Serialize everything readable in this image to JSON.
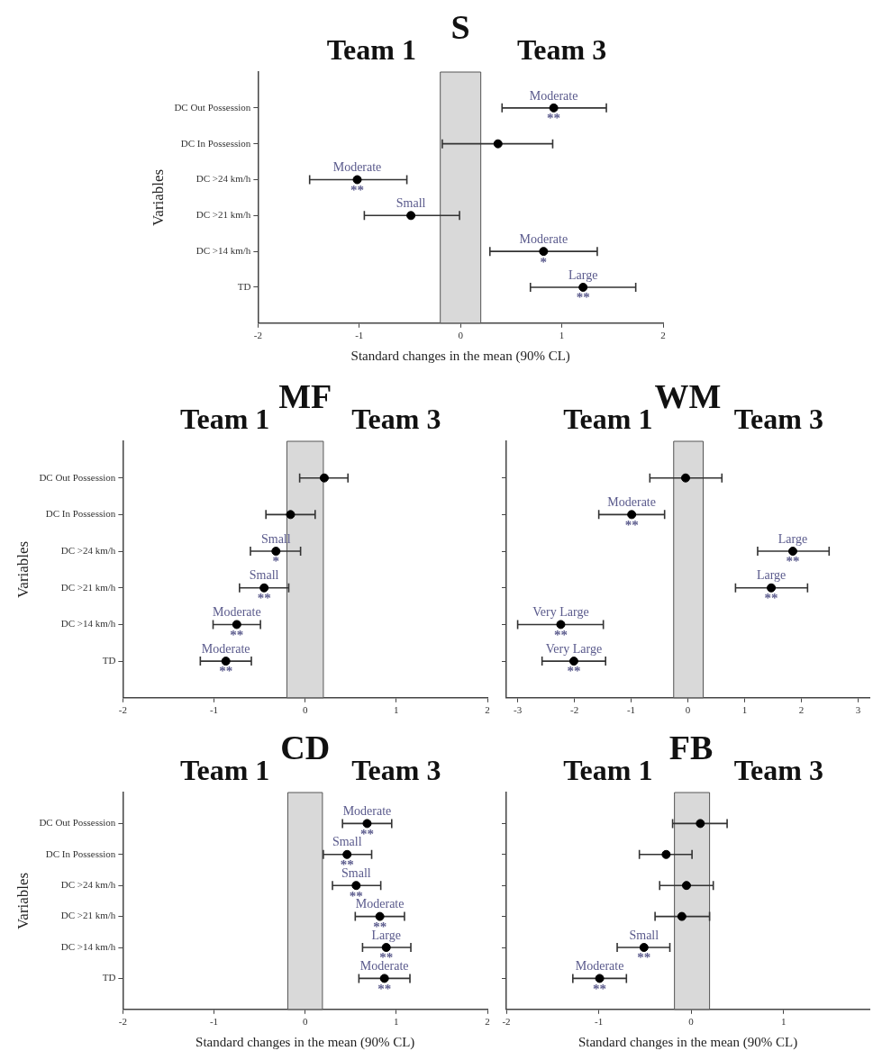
{
  "chart_data": [
    {
      "type": "scatter",
      "title": "S",
      "xlabel": "Standard changes in the mean (90% CL)",
      "ylabel": "Variables",
      "orientation": "horizontal",
      "marker": "circle",
      "color": "#000000",
      "categories": [
        "DC Out Possession",
        "DC In Possession",
        "DC >24 km/h",
        "DC >21 km/h",
        "DC >14 km/h",
        "TD"
      ],
      "values": [
        0.92,
        0.37,
        -1.02,
        -0.49,
        0.82,
        1.21
      ],
      "errors": [
        [
          0.41,
          1.44
        ],
        [
          -0.18,
          0.91
        ],
        [
          -1.49,
          -0.53
        ],
        [
          -0.95,
          -0.01
        ],
        [
          0.29,
          1.35
        ],
        [
          0.69,
          1.73
        ]
      ],
      "value_labels": [
        "Moderate",
        null,
        "Moderate",
        "Small",
        "Moderate",
        "Large"
      ],
      "xlim": [
        -2,
        2
      ],
      "xticks": [
        -2,
        -1,
        0,
        1,
        2
      ],
      "bands": [
        {
          "axis": "x",
          "from": -0.2,
          "to": 0.2,
          "color": "#d9d9d9"
        }
      ],
      "annotations": [
        "Team 1",
        "Team 3",
        {
          "text": "**",
          "x": 0.92,
          "y": "DC Out Possession"
        },
        {
          "text": "**",
          "x": -1.02,
          "y": "DC >24 km/h"
        },
        {
          "text": "*",
          "x": 0.82,
          "y": "DC >14 km/h"
        },
        {
          "text": "**",
          "x": 1.21,
          "y": "TD"
        }
      ]
    },
    {
      "type": "scatter",
      "title": "MF",
      "ylabel": "Variables",
      "orientation": "horizontal",
      "marker": "circle",
      "color": "#000000",
      "categories": [
        "DC Out Possession",
        "DC In Possession",
        "DC >24 km/h",
        "DC >21 km/h",
        "DC >14 km/h",
        "TD"
      ],
      "values": [
        0.21,
        -0.16,
        -0.32,
        -0.45,
        -0.75,
        -0.87
      ],
      "errors": [
        [
          -0.06,
          0.47
        ],
        [
          -0.43,
          0.11
        ],
        [
          -0.6,
          -0.05
        ],
        [
          -0.72,
          -0.18
        ],
        [
          -1.01,
          -0.49
        ],
        [
          -1.15,
          -0.59
        ]
      ],
      "value_labels": [
        null,
        null,
        "Small",
        "Small",
        "Moderate",
        "Moderate"
      ],
      "xlim": [
        -2,
        2
      ],
      "xticks": [
        -2,
        -1,
        0,
        1,
        2
      ],
      "bands": [
        {
          "axis": "x",
          "from": -0.2,
          "to": 0.2,
          "color": "#d9d9d9"
        }
      ],
      "annotations": [
        "Team 1",
        "Team 3",
        {
          "text": "*",
          "x": -0.32,
          "y": "DC >24 km/h"
        },
        {
          "text": "**",
          "x": -0.45,
          "y": "DC >21 km/h"
        },
        {
          "text": "**",
          "x": -0.75,
          "y": "DC >14 km/h"
        },
        {
          "text": "**",
          "x": -0.87,
          "y": "TD"
        }
      ]
    },
    {
      "type": "scatter",
      "title": "WM",
      "orientation": "horizontal",
      "marker": "circle",
      "color": "#000000",
      "tick_labels": "x",
      "categories": [
        "DC Out Possession",
        "DC In Possession",
        "DC >24 km/h",
        "DC >21 km/h",
        "DC >14 km/h",
        "TD"
      ],
      "values": [
        -0.04,
        -0.99,
        1.85,
        1.47,
        -2.24,
        -2.01
      ],
      "errors": [
        [
          -0.67,
          0.6
        ],
        [
          -1.57,
          -0.41
        ],
        [
          1.23,
          2.49
        ],
        [
          0.84,
          2.11
        ],
        [
          -3,
          -1.49
        ],
        [
          -2.57,
          -1.45
        ]
      ],
      "value_labels": [
        null,
        "Moderate",
        "Large",
        "Large",
        "Very Large",
        "Very Large"
      ],
      "xlim": [
        -3.2,
        3.2
      ],
      "xticks": [
        -3,
        -2,
        -1,
        0,
        1,
        2,
        3
      ],
      "bands": [
        {
          "axis": "x",
          "from": -0.25,
          "to": 0.27,
          "color": "#d9d9d9"
        }
      ],
      "annotations": [
        "Team 1",
        "Team 3",
        {
          "text": "**",
          "x": -0.99,
          "y": "DC In Possession"
        },
        {
          "text": "**",
          "x": 1.85,
          "y": "DC >24 km/h"
        },
        {
          "text": "**",
          "x": 1.47,
          "y": "DC >21 km/h"
        },
        {
          "text": "**",
          "x": -2.24,
          "y": "DC >14 km/h"
        },
        {
          "text": "**",
          "x": -2.01,
          "y": "TD"
        }
      ]
    },
    {
      "type": "scatter",
      "title": "CD",
      "xlabel": "Standard changes in the mean (90% CL)",
      "ylabel": "Variables",
      "orientation": "horizontal",
      "marker": "circle",
      "color": "#000000",
      "categories": [
        "DC Out Possession",
        "DC In Possession",
        "DC >24 km/h",
        "DC >21 km/h",
        "DC >14 km/h",
        "TD"
      ],
      "values": [
        0.68,
        0.46,
        0.56,
        0.82,
        0.89,
        0.87
      ],
      "errors": [
        [
          0.41,
          0.95
        ],
        [
          0.2,
          0.73
        ],
        [
          0.3,
          0.83
        ],
        [
          0.55,
          1.09
        ],
        [
          0.63,
          1.16
        ],
        [
          0.59,
          1.15
        ]
      ],
      "value_labels": [
        "Moderate",
        "Small",
        "Small",
        "Moderate",
        "Large",
        "Moderate"
      ],
      "xlim": [
        -2,
        2
      ],
      "xticks": [
        -2,
        -1,
        0,
        1,
        2
      ],
      "bands": [
        {
          "axis": "x",
          "from": -0.19,
          "to": 0.19,
          "color": "#d9d9d9"
        }
      ],
      "annotations": [
        "Team 1",
        "Team 3",
        {
          "text": "**",
          "x": 0.68,
          "y": "DC Out Possession"
        },
        {
          "text": "**",
          "x": 0.46,
          "y": "DC In Possession"
        },
        {
          "text": "**",
          "x": 0.56,
          "y": "DC >24 km/h"
        },
        {
          "text": "**",
          "x": 0.82,
          "y": "DC >21 km/h"
        },
        {
          "text": "**",
          "x": 0.89,
          "y": "DC >14 km/h"
        },
        {
          "text": "**",
          "x": 0.87,
          "y": "TD"
        }
      ]
    },
    {
      "type": "scatter",
      "title": "FB",
      "xlabel": "Standard changes in the mean (90% CL)",
      "orientation": "horizontal",
      "marker": "circle",
      "color": "#000000",
      "tick_labels": "x",
      "categories": [
        "DC Out Possession",
        "DC In Possession",
        "DC >24 km/h",
        "DC >21 km/h",
        "DC >14 km/h",
        "TD"
      ],
      "values": [
        0.1,
        -0.27,
        -0.05,
        -0.1,
        -0.51,
        -0.99
      ],
      "errors": [
        [
          -0.2,
          0.39
        ],
        [
          -0.56,
          0.01
        ],
        [
          -0.34,
          0.24
        ],
        [
          -0.39,
          0.2
        ],
        [
          -0.8,
          -0.23
        ],
        [
          -1.28,
          -0.7
        ]
      ],
      "value_labels": [
        null,
        null,
        null,
        null,
        "Small",
        "Moderate"
      ],
      "xlim": [
        -2,
        1.93
      ],
      "xticks": [
        -2,
        -1,
        0,
        1
      ],
      "bands": [
        {
          "axis": "x",
          "from": -0.18,
          "to": 0.2,
          "color": "#d9d9d9"
        }
      ],
      "annotations": [
        "Team 1",
        "Team 3",
        {
          "text": "**",
          "x": -0.51,
          "y": "DC >14 km/h"
        },
        {
          "text": "**",
          "x": -0.99,
          "y": "TD"
        }
      ]
    }
  ]
}
